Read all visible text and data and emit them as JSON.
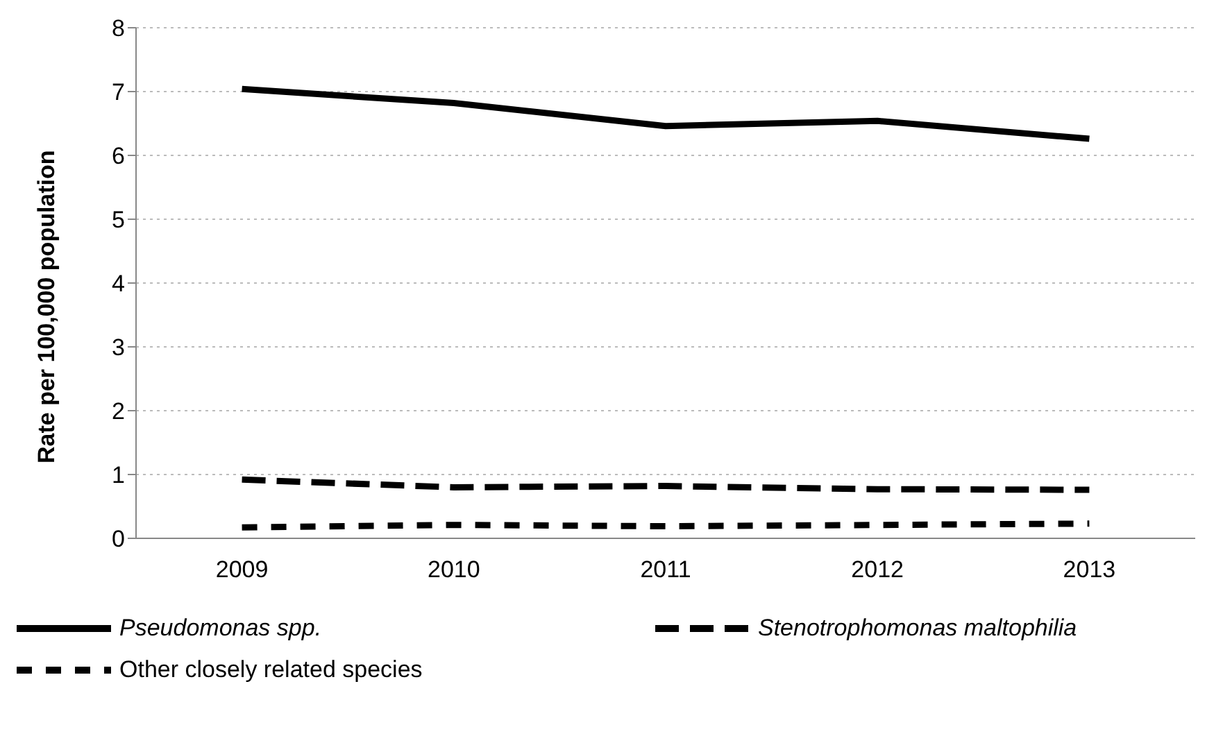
{
  "chart_data": {
    "type": "line",
    "ylabel": "Rate per 100,000 population",
    "categories": [
      "2009",
      "2010",
      "2011",
      "2012",
      "2013"
    ],
    "series": [
      {
        "name": "Pseudomonas spp.",
        "color": "#000000",
        "line_style": "solid",
        "values": [
          7.04,
          6.82,
          6.46,
          6.54,
          6.26
        ]
      },
      {
        "name": "Stenotrophomonas maltophilia",
        "color": "#000000",
        "line_style": "dashed",
        "values": [
          0.92,
          0.8,
          0.82,
          0.77,
          0.76
        ]
      },
      {
        "name": "Other closely related species",
        "color": "#000000",
        "line_style": "dashed",
        "values": [
          0.17,
          0.21,
          0.19,
          0.21,
          0.23
        ]
      }
    ],
    "ylim": [
      0,
      8
    ],
    "yticks": [
      0,
      1,
      2,
      3,
      4,
      5,
      6,
      7,
      8
    ],
    "grid": "y",
    "legend": "bottom",
    "marker": "none"
  }
}
